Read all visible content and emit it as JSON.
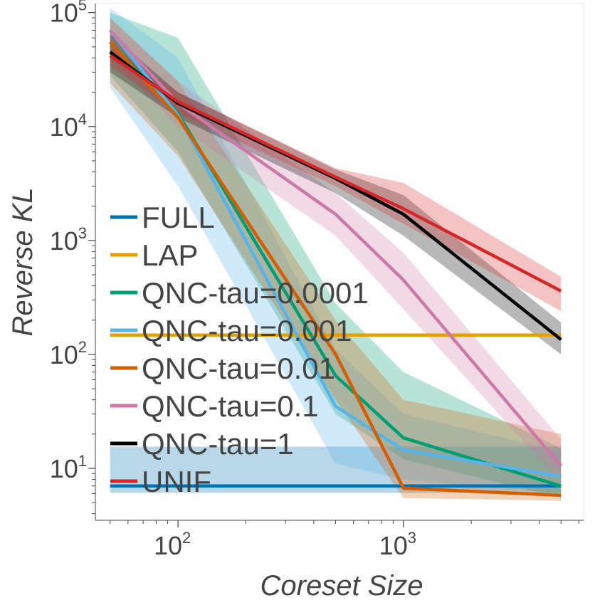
{
  "chart_data": {
    "type": "line",
    "xlabel": "Coreset Size",
    "ylabel": "Reverse KL",
    "xscale": "log",
    "yscale": "log",
    "xlim": [
      43,
      6300
    ],
    "ylim": [
      3.5,
      120000
    ],
    "x_ticks": [
      {
        "base": "10",
        "exp": "2",
        "value": 100
      },
      {
        "base": "10",
        "exp": "3",
        "value": 1000
      }
    ],
    "y_ticks": [
      {
        "base": "10",
        "exp": "1",
        "value": 10
      },
      {
        "base": "10",
        "exp": "2",
        "value": 100
      },
      {
        "base": "10",
        "exp": "3",
        "value": 1000
      },
      {
        "base": "10",
        "exp": "4",
        "value": 10000
      },
      {
        "base": "10",
        "exp": "5",
        "value": 100000
      }
    ],
    "legend_location": "left",
    "series": [
      {
        "name": "FULL",
        "color": "#0072B2",
        "x": [
          50,
          5000
        ],
        "y": [
          7,
          7
        ],
        "lower": [
          6.1,
          6.1
        ],
        "upper": [
          15.5,
          15.5
        ]
      },
      {
        "name": "LAP",
        "color": "#E69F00",
        "x": [
          50,
          5000
        ],
        "y": [
          148,
          148
        ],
        "lower": [
          147,
          147
        ],
        "upper": [
          149,
          149
        ]
      },
      {
        "name": "QNC-tau=0.0001",
        "color": "#009E73",
        "x": [
          50,
          100,
          500,
          1000,
          5000
        ],
        "y": [
          55000,
          13000,
          65,
          18.5,
          7
        ],
        "lower": [
          28000,
          6000,
          30,
          12,
          5.5
        ],
        "upper": [
          100000,
          60000,
          280,
          70,
          15
        ]
      },
      {
        "name": "QNC-tau=0.001",
        "color": "#56B4E9",
        "x": [
          50,
          100,
          500,
          1000,
          5000
        ],
        "y": [
          70000,
          12500,
          35,
          14.5,
          8.5
        ],
        "lower": [
          22000,
          3000,
          11,
          8,
          6
        ],
        "upper": [
          110000,
          40000,
          110,
          30,
          14
        ]
      },
      {
        "name": "QNC-tau=0.01",
        "color": "#D55E00",
        "x": [
          50,
          100,
          500,
          1000,
          5000
        ],
        "y": [
          55000,
          12000,
          100,
          6.7,
          5.8
        ],
        "lower": [
          24000,
          5500,
          40,
          5.5,
          5.2
        ],
        "upper": [
          90000,
          25000,
          200,
          40,
          20
        ]
      },
      {
        "name": "QNC-tau=0.1",
        "color": "#CC79A7",
        "x": [
          50,
          100,
          500,
          1000,
          5000
        ],
        "y": [
          70000,
          16000,
          1700,
          450,
          10.5
        ],
        "lower": [
          40000,
          10000,
          1100,
          250,
          7.5
        ],
        "upper": [
          90000,
          25000,
          2600,
          780,
          18
        ]
      },
      {
        "name": "QNC-tau=1",
        "color": "#000000",
        "x": [
          50,
          100,
          500,
          1000,
          5000
        ],
        "y": [
          45000,
          16000,
          3500,
          1700,
          135
        ],
        "lower": [
          30000,
          12000,
          2600,
          1100,
          100
        ],
        "upper": [
          65000,
          20000,
          4200,
          2500,
          190
        ]
      },
      {
        "name": "UNIF",
        "color": "#D62728",
        "x": [
          50,
          100,
          500,
          1000,
          5000
        ],
        "y": [
          42000,
          16500,
          3600,
          1900,
          360
        ],
        "lower": [
          34000,
          13000,
          3000,
          1400,
          240
        ],
        "upper": [
          52000,
          20000,
          4300,
          3200,
          480
        ]
      }
    ]
  }
}
